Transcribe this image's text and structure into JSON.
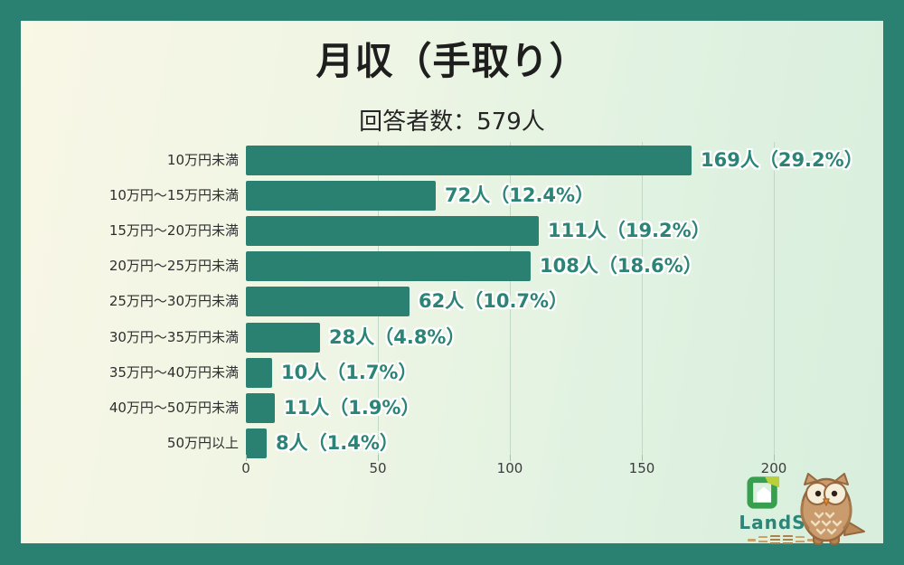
{
  "title": "月収（手取り）",
  "subtitle": "回答者数：579人",
  "chart_data": {
    "type": "bar",
    "orientation": "horizontal",
    "title": "月収（手取り）",
    "subtitle": "回答者数：579人",
    "categories": [
      "10万円未満",
      "10万円〜15万円未満",
      "15万円〜20万円未満",
      "20万円〜25万円未満",
      "25万円〜30万円未満",
      "30万円〜35万円未満",
      "35万円〜40万円未満",
      "40万円〜50万円未満",
      "50万円以上"
    ],
    "values": [
      169,
      72,
      111,
      108,
      62,
      28,
      10,
      11,
      8
    ],
    "percents": [
      29.2,
      12.4,
      19.2,
      18.6,
      10.7,
      4.8,
      1.7,
      1.9,
      1.4
    ],
    "bar_labels": [
      "169人（29.2%）",
      "72人（12.4%）",
      "111人（19.2%）",
      "108人（18.6%）",
      "62人（10.7%）",
      "28人（4.8%）",
      "10人（1.7%）",
      "11人（1.9%）",
      "8人（1.4%）"
    ],
    "total_respondents": 579,
    "xlim": [
      0,
      200
    ],
    "x_ticks": [
      "0",
      "50",
      "100",
      "150",
      "200"
    ],
    "grid": true,
    "legend": false,
    "bar_color": "#2a8172",
    "label_color": "#2c8476",
    "frame_color": "#2a8171"
  },
  "logo": {
    "name": "LandSitz",
    "text_color": "#2e8577"
  }
}
